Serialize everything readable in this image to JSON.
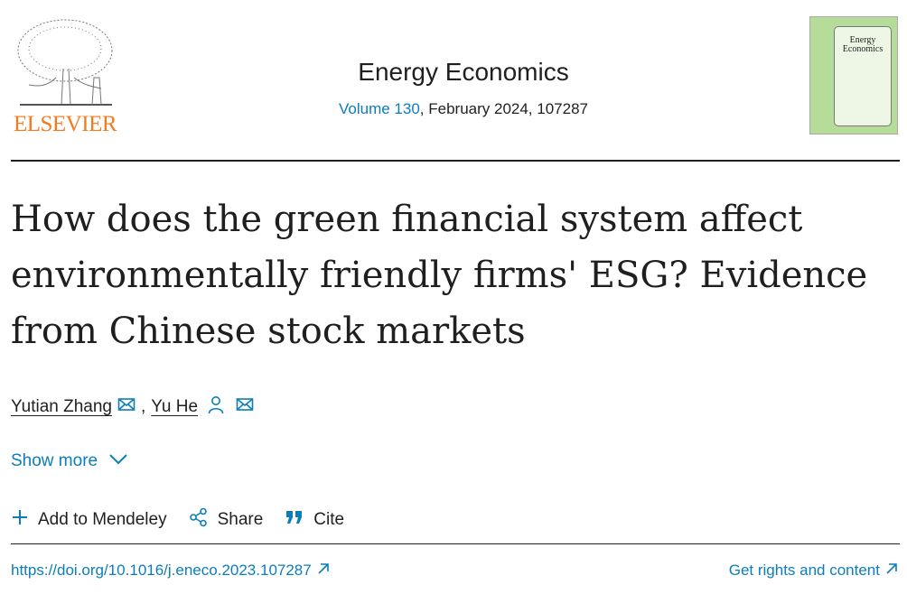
{
  "header": {
    "publisher_logo_text": "ELSEVIER",
    "journal_title": "Energy Economics",
    "volume_link": "Volume 130",
    "issue_info": ", February 2024, 107287",
    "cover_title": "Energy Economics"
  },
  "article": {
    "title": "How does the green financial system affect environmentally friendly firms' ESG? Evidence from Chinese stock markets",
    "authors": [
      {
        "name": "Yutian Zhang",
        "icons": [
          "email-icon"
        ]
      },
      {
        "name": "Yu He",
        "icons": [
          "person-icon",
          "email-icon"
        ]
      }
    ],
    "author_separator": ",",
    "show_more": "Show more"
  },
  "actions": {
    "mendeley": "Add to Mendeley",
    "share": "Share",
    "cite": "Cite"
  },
  "links": {
    "doi": "https://doi.org/10.1016/j.eneco.2023.107287",
    "rights": "Get rights and content"
  },
  "colors": {
    "link": "#0c7dbb",
    "publisher": "#f47a20",
    "cover": "#b5dc98"
  }
}
